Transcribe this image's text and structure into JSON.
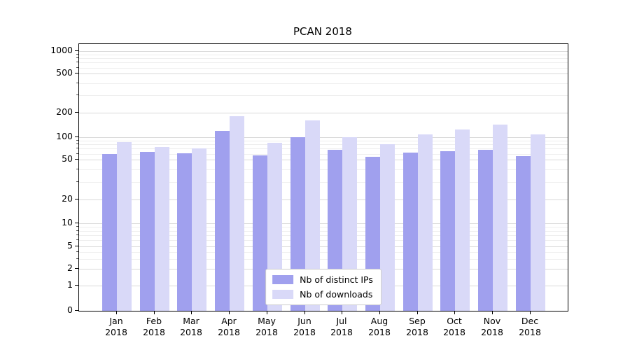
{
  "title": "PCAN 2018",
  "chart_data": {
    "type": "bar",
    "title": "PCAN 2018",
    "yscale": "symlog",
    "grid": true,
    "legend_position": "lower center",
    "ylim": [
      0,
      1000
    ],
    "yticks": [
      0,
      1,
      2,
      5,
      10,
      20,
      50,
      100,
      200,
      500,
      1000
    ],
    "categories": [
      "Jan 2018",
      "Feb 2018",
      "Mar 2018",
      "Apr 2018",
      "May 2018",
      "Jun 2018",
      "Jul 2018",
      "Aug 2018",
      "Sep 2018",
      "Oct 2018",
      "Nov 2018",
      "Dec 2018"
    ],
    "series": [
      {
        "name": "Nb of distinct IPs",
        "color": "#a0a0ee",
        "values": [
          60,
          63,
          61,
          120,
          57,
          100,
          68,
          55,
          62,
          65,
          68,
          56
        ]
      },
      {
        "name": "Nb of downloads",
        "color": "#d9d9f8",
        "values": [
          86,
          74,
          71,
          180,
          84,
          160,
          100,
          81,
          108,
          124,
          143,
          108
        ]
      }
    ]
  },
  "legend": {
    "items": [
      "Nb of distinct IPs",
      "Nb of downloads"
    ]
  }
}
